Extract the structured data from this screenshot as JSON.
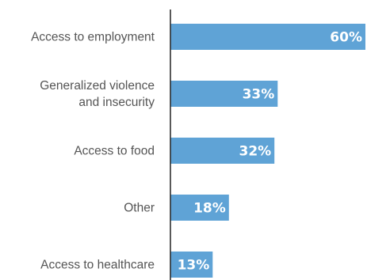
{
  "chart_data": {
    "type": "bar",
    "orientation": "horizontal",
    "categories": [
      [
        "Access to employment"
      ],
      [
        "Generalized violence",
        "and insecurity"
      ],
      [
        "Access to food"
      ],
      [
        "Other"
      ],
      [
        "Access to healthcare"
      ]
    ],
    "values": [
      60,
      33,
      32,
      18,
      13
    ],
    "value_labels": [
      "60%",
      "33%",
      "32%",
      "18%",
      "13%"
    ],
    "xlim": [
      0,
      60
    ],
    "grid": false,
    "legend": "none",
    "colors": {
      "bar": "#5fa3d6",
      "axis": "#222222",
      "category_text": "#555555",
      "value_text": "#ffffff"
    }
  }
}
